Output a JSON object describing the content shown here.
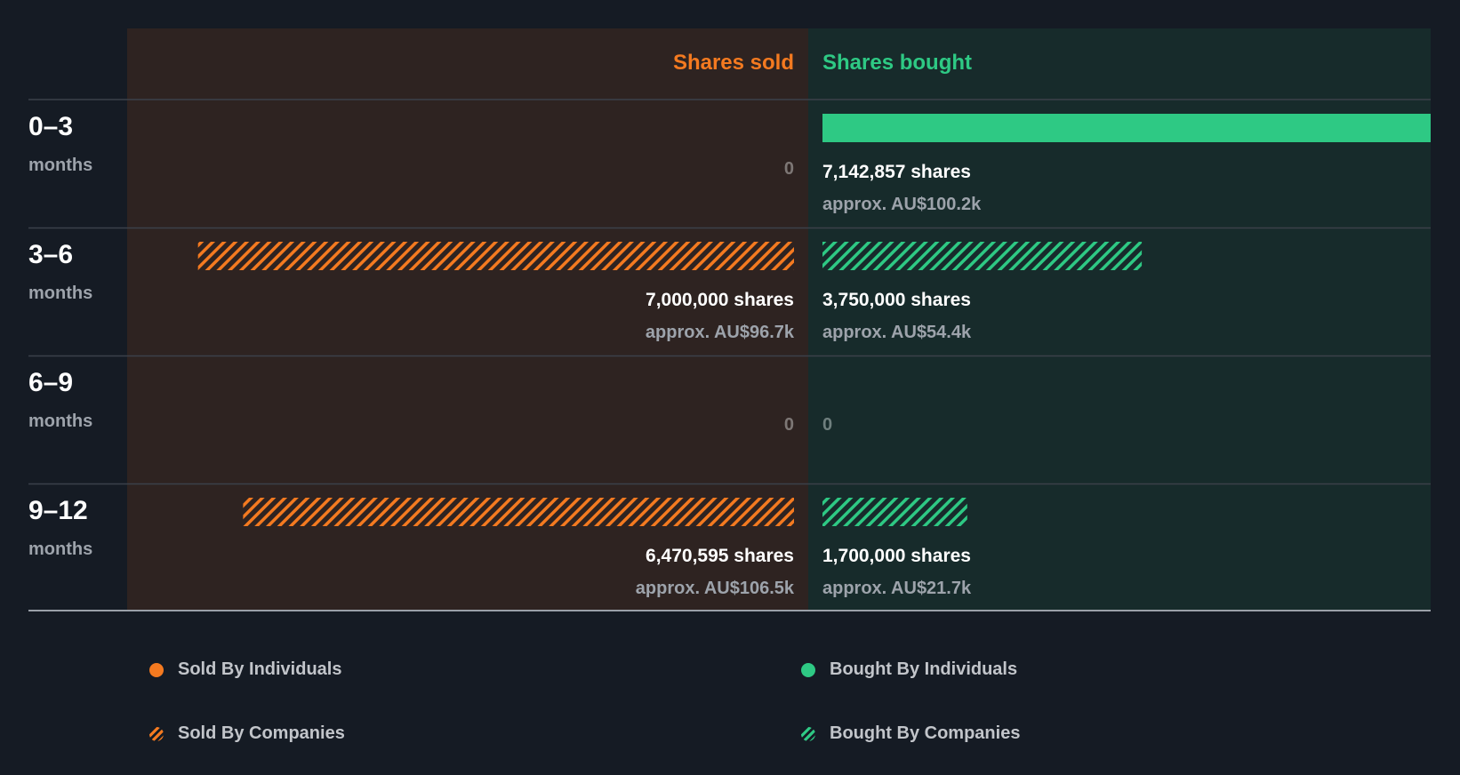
{
  "chart_data": {
    "type": "bar",
    "columns": {
      "sold": "Shares sold",
      "bought": "Shares bought"
    },
    "categories": [
      {
        "range": "0–3",
        "unit": "months"
      },
      {
        "range": "3–6",
        "unit": "months"
      },
      {
        "range": "6–9",
        "unit": "months"
      },
      {
        "range": "9–12",
        "unit": "months"
      }
    ],
    "sold": [
      {
        "shares": 0,
        "label": "0",
        "approx": "",
        "by": "none"
      },
      {
        "shares": 7000000,
        "label": "7,000,000 shares",
        "approx": "approx. AU$96.7k",
        "by": "companies"
      },
      {
        "shares": 0,
        "label": "0",
        "approx": "",
        "by": "none"
      },
      {
        "shares": 6470595,
        "label": "6,470,595 shares",
        "approx": "approx. AU$106.5k",
        "by": "companies"
      }
    ],
    "bought": [
      {
        "shares": 7142857,
        "label": "7,142,857 shares",
        "approx": "approx. AU$100.2k",
        "by": "individuals"
      },
      {
        "shares": 3750000,
        "label": "3,750,000 shares",
        "approx": "approx. AU$54.4k",
        "by": "companies"
      },
      {
        "shares": 0,
        "label": "0",
        "approx": "",
        "by": "none"
      },
      {
        "shares": 1700000,
        "label": "1,700,000 shares",
        "approx": "approx. AU$21.7k",
        "by": "companies"
      }
    ],
    "max_shares": 7142857,
    "legend": {
      "sold_individuals": "Sold By Individuals",
      "bought_individuals": "Bought By Individuals",
      "sold_companies": "Sold By Companies",
      "bought_companies": "Bought By Companies"
    },
    "colors": {
      "background": "#151b24",
      "sold": "#f47a20",
      "bought": "#2ec984",
      "sold_panel": "#2e2321",
      "bought_panel": "#172b2b"
    }
  }
}
